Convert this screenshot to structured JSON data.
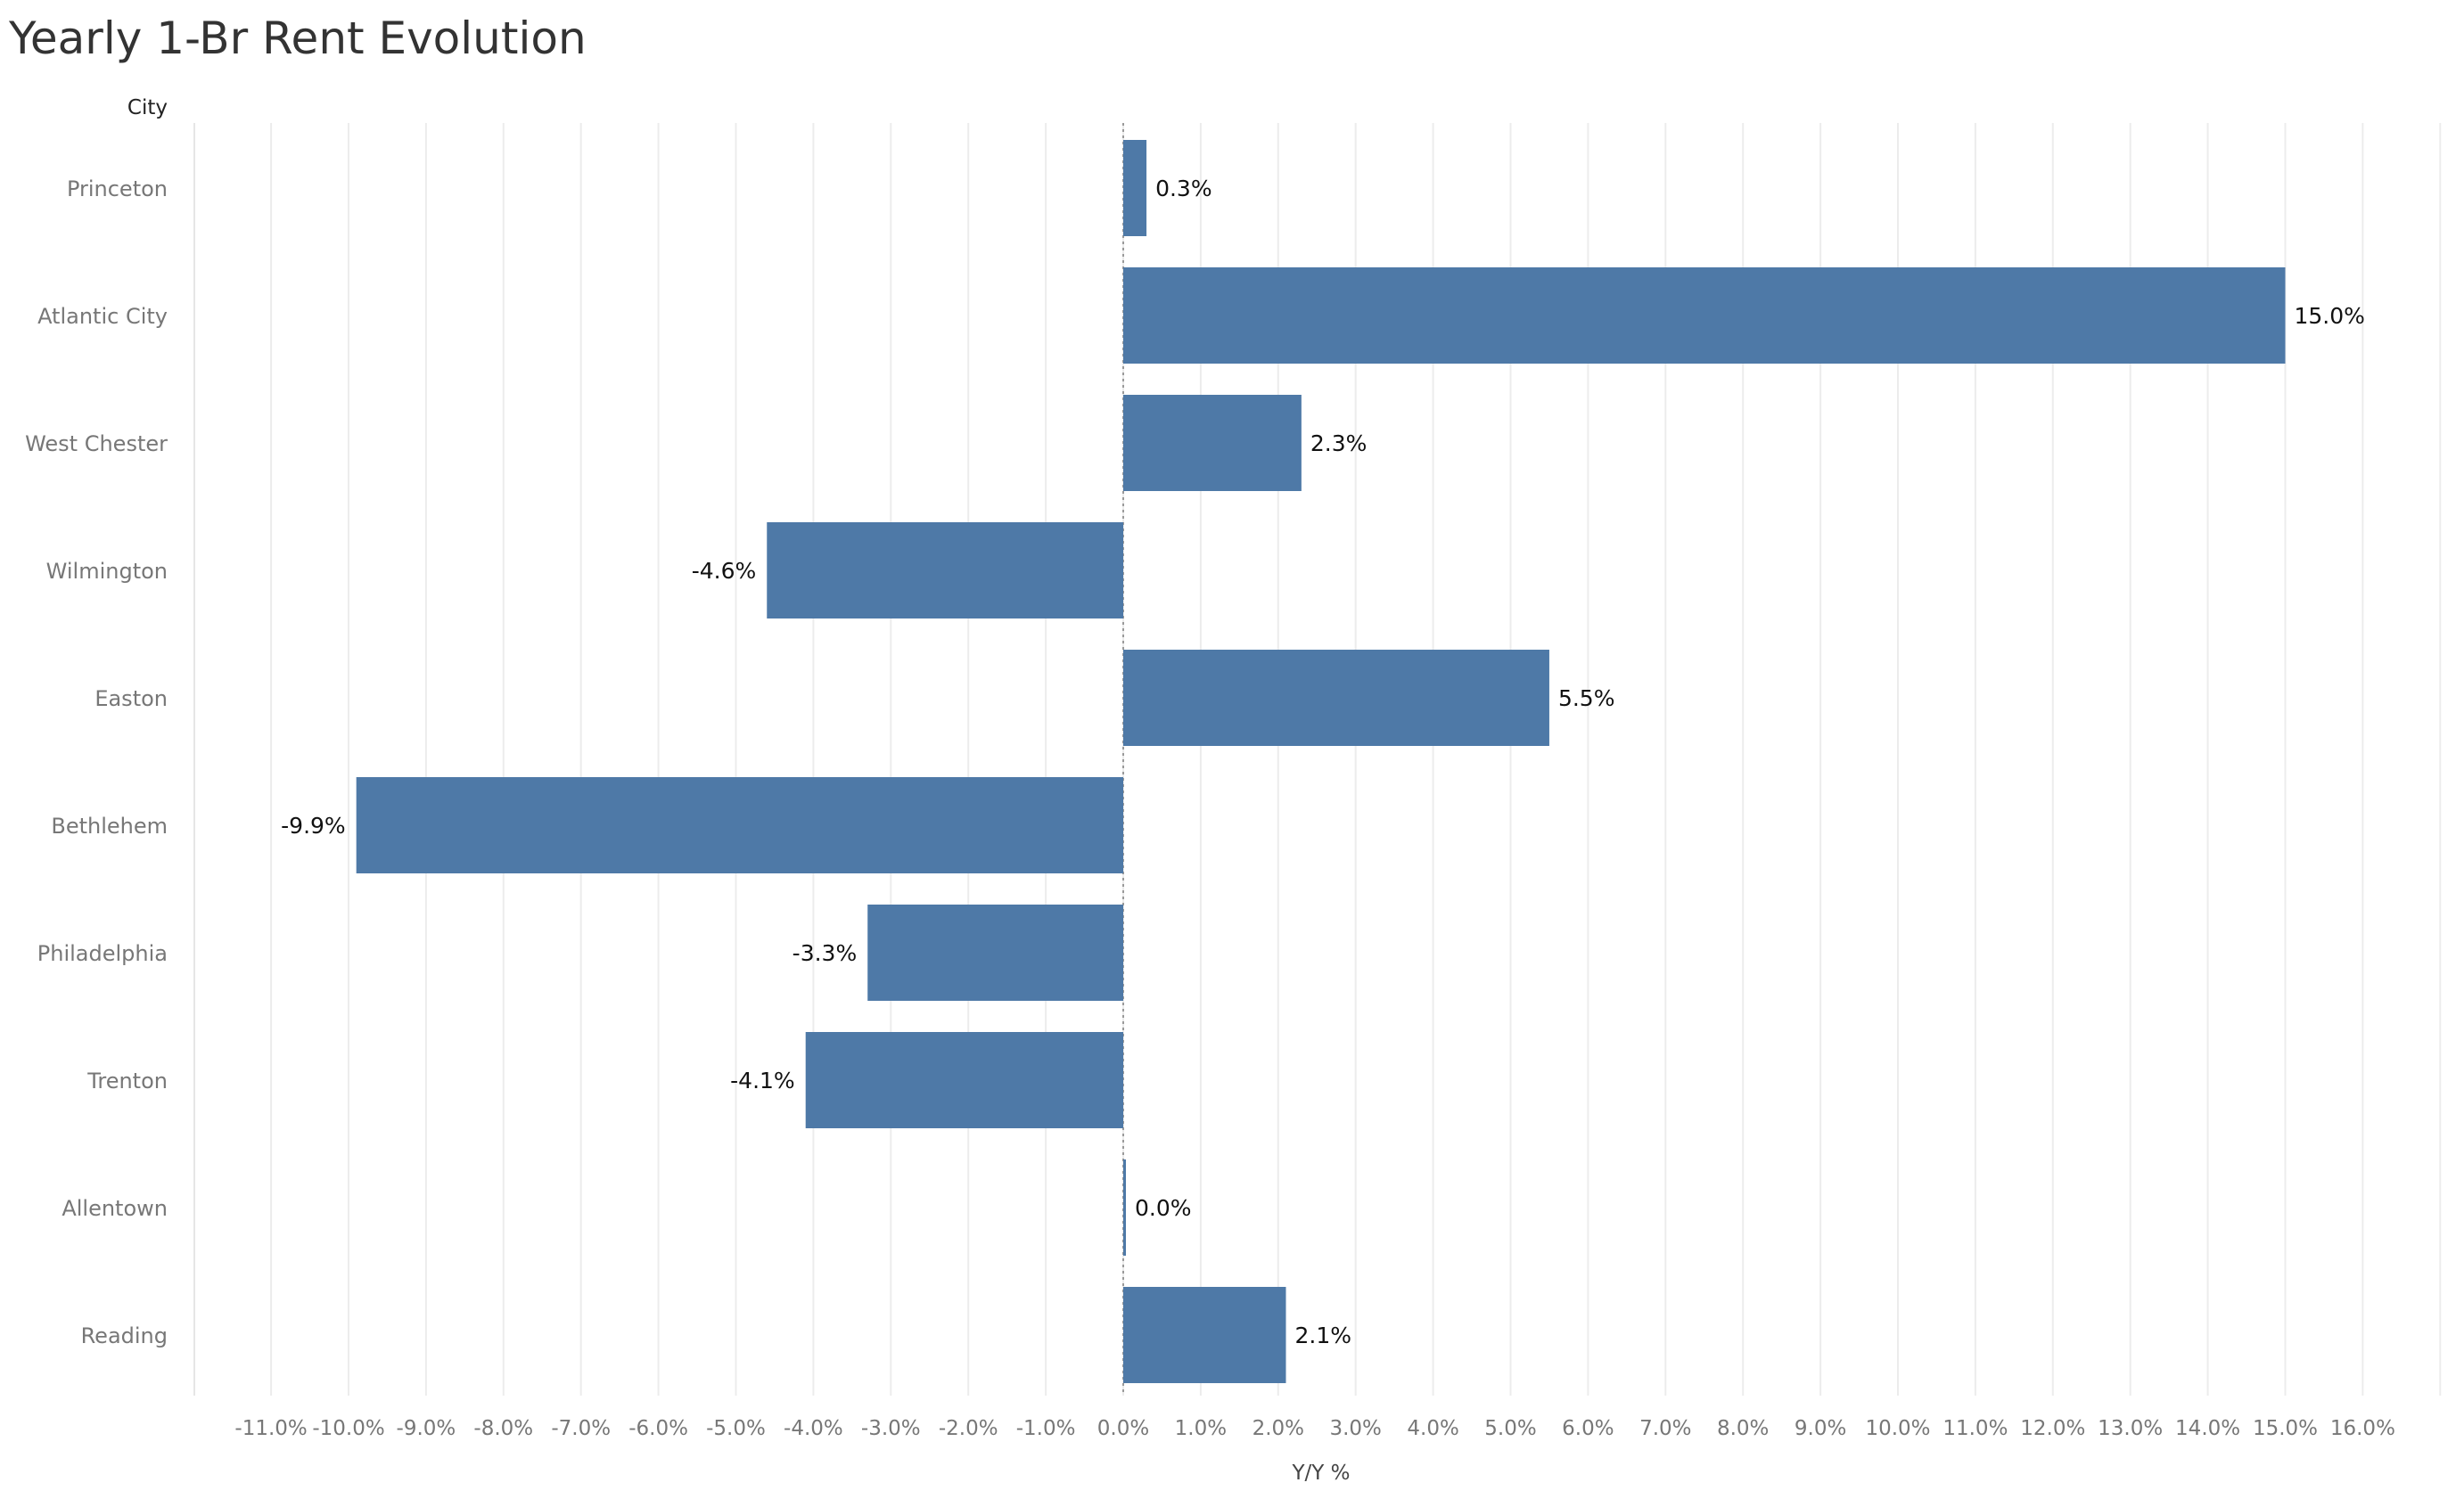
{
  "chart_data": {
    "type": "bar",
    "orientation": "horizontal",
    "title": "Yearly 1-Br Rent Evolution",
    "row_header": "City",
    "xlabel": "Y/Y %",
    "categories": [
      "Princeton",
      "Atlantic City",
      "West Chester",
      "Wilmington",
      "Easton",
      "Bethlehem",
      "Philadelphia",
      "Trenton",
      "Allentown",
      "Reading"
    ],
    "values": [
      0.3,
      15.0,
      2.3,
      -4.6,
      5.5,
      -9.9,
      -3.3,
      -4.1,
      0.0,
      2.1
    ],
    "data_labels": [
      "0.3%",
      "15.0%",
      "2.3%",
      "-4.6%",
      "5.5%",
      "-9.9%",
      "-3.3%",
      "-4.1%",
      "0.0%",
      "2.1%"
    ],
    "x_ticks": [
      -11,
      -10,
      -9,
      -8,
      -7,
      -6,
      -5,
      -4,
      -3,
      -2,
      -1,
      0,
      1,
      2,
      3,
      4,
      5,
      6,
      7,
      8,
      9,
      10,
      11,
      12,
      13,
      14,
      15,
      16
    ],
    "x_tick_labels": [
      "-11.0%",
      "-10.0%",
      "-9.0%",
      "-8.0%",
      "-7.0%",
      "-6.0%",
      "-5.0%",
      "-4.0%",
      "-3.0%",
      "-2.0%",
      "-1.0%",
      "0.0%",
      "1.0%",
      "2.0%",
      "3.0%",
      "4.0%",
      "5.0%",
      "6.0%",
      "7.0%",
      "8.0%",
      "9.0%",
      "10.0%",
      "11.0%",
      "12.0%",
      "13.0%",
      "14.0%",
      "15.0%",
      "16.0%"
    ],
    "xlim": [
      -12,
      17
    ],
    "grid": true,
    "bar_color": "#4e79a7"
  }
}
